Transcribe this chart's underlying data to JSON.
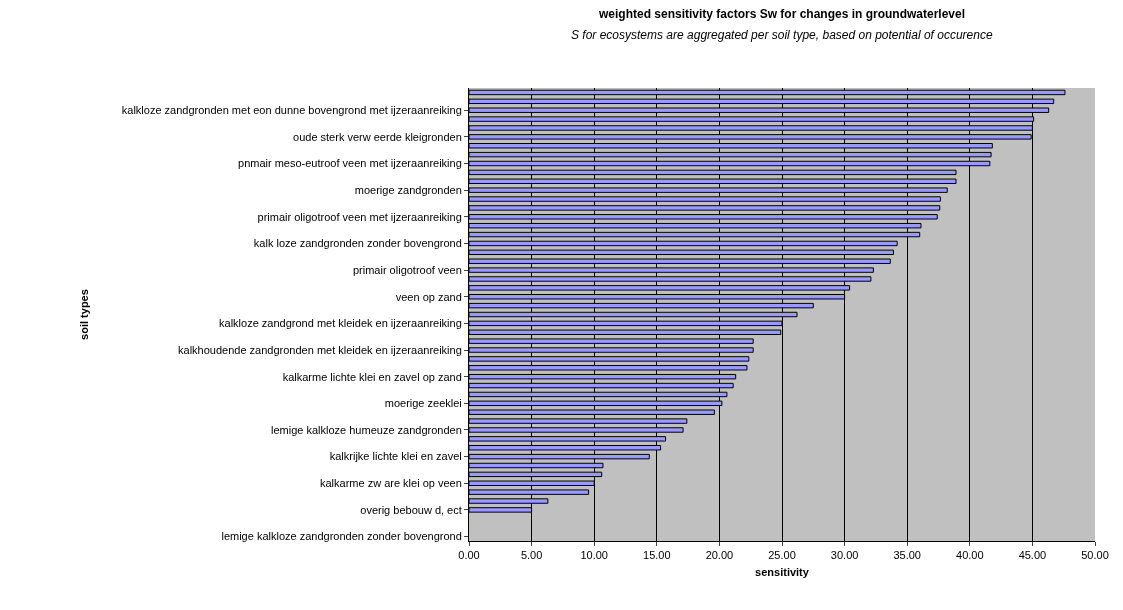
{
  "chart_data": {
    "type": "bar",
    "orientation": "horizontal",
    "title": "weighted sensitivity factors Sw for changes in groundwaterlevel",
    "subtitle": "S for ecosystems are aggregated per soil type, based on potential of occurence",
    "xlabel": "sensitivity",
    "ylabel": "soil types",
    "categories": [
      null,
      null,
      "kalkloze zandgronden met eon dunne bovengrond met ijzeraanreiking",
      null,
      null,
      "oude sterk verw eerde kleigronden",
      null,
      null,
      "pnmair meso-eutroof veen met ijzeraanreiking",
      null,
      null,
      "moerige zandgronden",
      null,
      null,
      "primair oligotroof veen met ijzeraanreiking",
      null,
      null,
      "kalk loze zandgronden zonder bovengrond",
      null,
      null,
      "primair oligotroof veen",
      null,
      null,
      "veen op zand",
      null,
      null,
      "kalkloze zandgrond met kleidek en ijzeraanreiking",
      null,
      null,
      "kalkhoudende zandgronden met kleidek en ijzeraanreiking",
      null,
      null,
      "kalkarme lichte klei en zavel op zand",
      null,
      null,
      "moerige zeeklei",
      null,
      null,
      "lemige kalkloze humeuze zandgronden",
      null,
      null,
      "kalkrijke lichte klei en zavel",
      null,
      null,
      "kalkarme zw are klei op veen",
      null,
      null,
      "overig bebouw d, ect",
      null,
      null,
      "lemige kalkloze zandgronden zonder bovengrond"
    ],
    "values": [
      47.6,
      46.7,
      46.3,
      45.1,
      45.0,
      44.9,
      41.8,
      41.7,
      41.6,
      38.9,
      38.9,
      38.2,
      37.65,
      37.6,
      37.4,
      36.1,
      36.0,
      34.2,
      33.9,
      33.65,
      32.3,
      32.1,
      30.4,
      30.0,
      27.5,
      26.2,
      25.0,
      24.9,
      22.7,
      22.7,
      22.35,
      22.2,
      21.3,
      21.1,
      20.6,
      20.2,
      19.6,
      17.4,
      17.1,
      15.7,
      15.3,
      14.4,
      10.7,
      10.6,
      10.0,
      9.55,
      6.3,
      5.0,
      null,
      null,
      null
    ],
    "color": "#9999ff",
    "xlim": [
      0,
      50
    ],
    "xticks": [
      {
        "value": 0,
        "label": "0.00"
      },
      {
        "value": 5,
        "label": "5.00"
      },
      {
        "value": 10,
        "label": "10.00"
      },
      {
        "value": 15,
        "label": "15.00"
      },
      {
        "value": 20,
        "label": "20.00"
      },
      {
        "value": 25,
        "label": "25.00"
      },
      {
        "value": 30,
        "label": "30.00"
      },
      {
        "value": 35,
        "label": "35.00"
      },
      {
        "value": 40,
        "label": "40.00"
      },
      {
        "value": 45,
        "label": "45.00"
      },
      {
        "value": 50,
        "label": "50.00"
      }
    ],
    "grid": "x"
  }
}
